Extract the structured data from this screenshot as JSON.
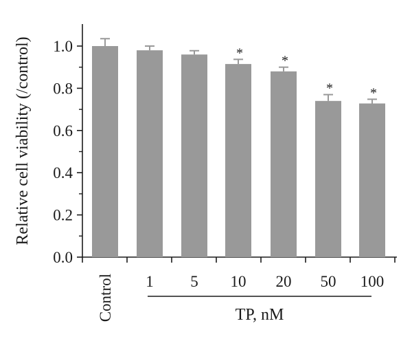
{
  "chart_data": {
    "type": "bar",
    "categories": [
      "Control",
      "1",
      "5",
      "10",
      "20",
      "50",
      "100"
    ],
    "values": [
      1.0,
      0.98,
      0.96,
      0.915,
      0.88,
      0.74,
      0.728
    ],
    "errors": [
      0.035,
      0.02,
      0.018,
      0.022,
      0.02,
      0.03,
      0.02
    ],
    "significant": [
      false,
      false,
      false,
      true,
      true,
      true,
      true
    ],
    "significance_marker": "*",
    "ylabel": "Relative cell viability (/control)",
    "group_label": "TP, nM",
    "ylim": [
      0.0,
      1.1
    ],
    "yticks": [
      "0.0",
      "0.2",
      "0.4",
      "0.6",
      "0.8",
      "1.0"
    ],
    "grid": false,
    "bar_color": "#999999",
    "axis_color": "#1a1a1a"
  }
}
